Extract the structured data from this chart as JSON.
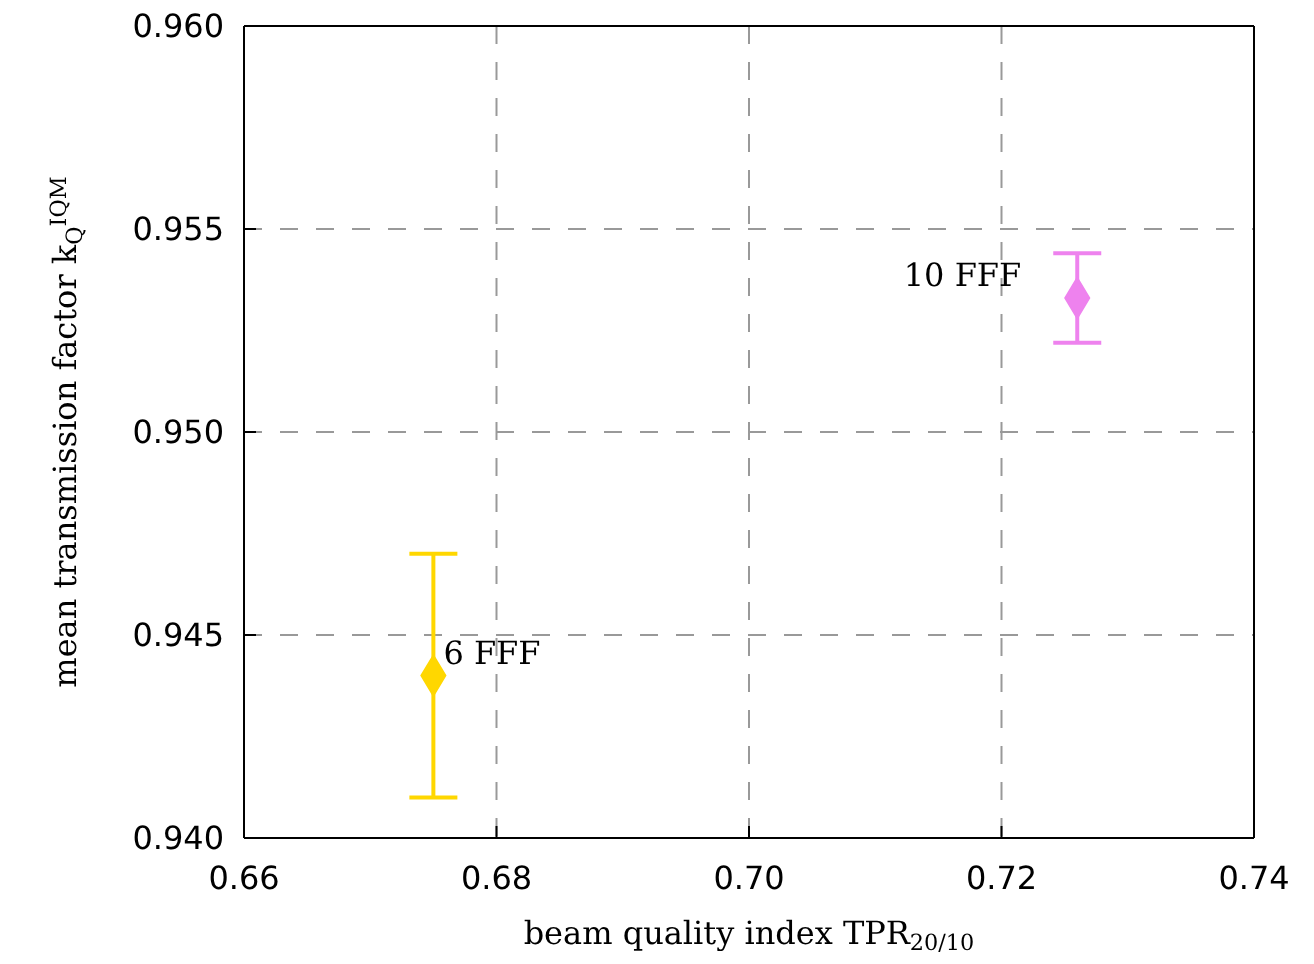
{
  "chart_data": {
    "type": "scatter",
    "xlabel": "beam quality index TPR$_{20/10}$",
    "ylabel": "mean transmission factor k$_{Q}$$^{IQM}$",
    "xlim": [
      0.66,
      0.74
    ],
    "xticks": [
      {
        "value": 0.66,
        "label": "0.66"
      },
      {
        "value": 0.68,
        "label": "0.68"
      },
      {
        "value": 0.7,
        "label": "0.70"
      },
      {
        "value": 0.72,
        "label": "0.72"
      },
      {
        "value": 0.74,
        "label": "0.74"
      }
    ],
    "ylim": [
      0.94,
      0.96
    ],
    "yticks": [
      {
        "value": 0.94,
        "label": "0.940"
      },
      {
        "value": 0.945,
        "label": "0.945"
      },
      {
        "value": 0.95,
        "label": "0.950"
      },
      {
        "value": 0.955,
        "label": "0.955"
      },
      {
        "value": 0.96,
        "label": "0.960"
      }
    ],
    "grid": true,
    "marker": "diamond",
    "series": [
      {
        "name": "6 FFF",
        "color": "#ffd700",
        "x": [
          0.675
        ],
        "values": [
          0.944
        ],
        "errors": [
          0.003
        ]
      },
      {
        "name": "10 FFF",
        "color": "#ee82ee",
        "x": [
          0.726
        ],
        "values": [
          0.9533
        ],
        "errors": [
          0.0011
        ]
      }
    ]
  }
}
